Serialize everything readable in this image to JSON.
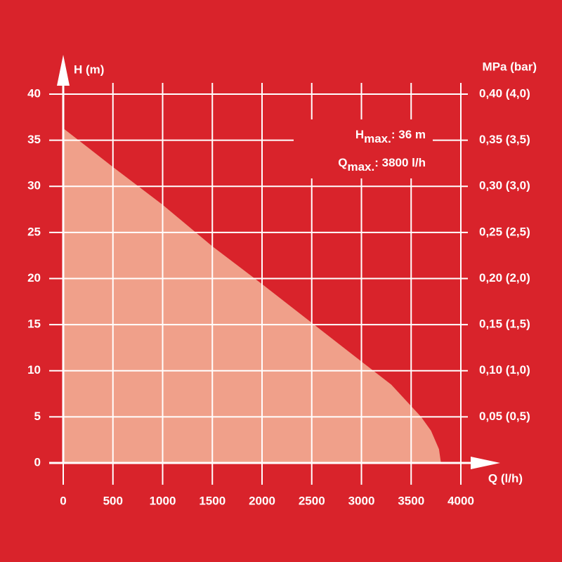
{
  "chart_data": {
    "type": "area",
    "y_label": "H (m)",
    "y2_label": "MPa (bar)",
    "x_label": "Q (l/h)",
    "annotations": [
      {
        "main": "H",
        "sub": "max.",
        "rest": ": 36 m"
      },
      {
        "main": "Q",
        "sub": "max.",
        "rest": ": 3800 l/h"
      }
    ],
    "x": [
      0,
      500,
      1000,
      1500,
      2000,
      2500,
      3000,
      3300,
      3600,
      3700,
      3780,
      3800
    ],
    "series": [
      {
        "color": "#f0a08a",
        "values": [
          36.3,
          32.1,
          28,
          23.5,
          19.4,
          15.2,
          11,
          8.5,
          5,
          3.5,
          1.5,
          0
        ]
      }
    ],
    "xlim": [
      0,
      4000
    ],
    "xticks": [
      0,
      500,
      1000,
      1500,
      2000,
      2500,
      3000,
      3500,
      4000
    ],
    "ylim": [
      0,
      40
    ],
    "yticks": [
      0,
      5,
      10,
      15,
      20,
      25,
      30,
      35,
      40
    ],
    "y2lim": [
      0,
      0.4
    ],
    "y2ticks": [
      {
        "value": 0.05,
        "label": "0,05 (0,5)"
      },
      {
        "value": 0.1,
        "label": "0,10 (1,0)"
      },
      {
        "value": 0.15,
        "label": "0,15 (1,5)"
      },
      {
        "value": 0.2,
        "label": "0,20 (2,0)"
      },
      {
        "value": 0.25,
        "label": "0,25 (2,5)"
      },
      {
        "value": 0.3,
        "label": "0,30 (3,0)"
      },
      {
        "value": 0.35,
        "label": "0,35 (3,5)"
      },
      {
        "value": 0.4,
        "label": "0,40 (4,0)"
      }
    ],
    "grid": true
  }
}
